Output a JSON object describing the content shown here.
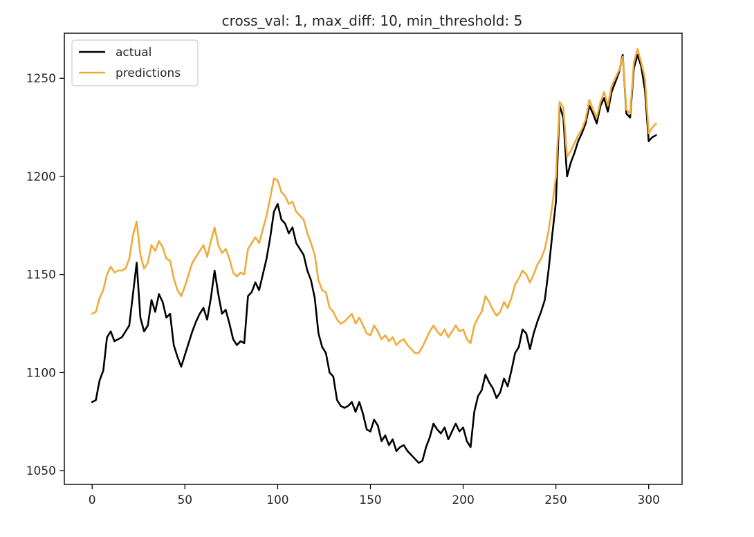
{
  "chart_data": {
    "type": "line",
    "title": "cross_val: 1, max_diff: 10, min_threshold: 5",
    "xlabel": "",
    "ylabel": "",
    "xlim": [
      -15,
      318
    ],
    "ylim": [
      1043,
      1273
    ],
    "xticks": [
      0,
      50,
      100,
      150,
      200,
      250,
      300
    ],
    "yticks": [
      1050,
      1100,
      1150,
      1200,
      1250
    ],
    "grid": false,
    "legend_position": "upper left",
    "series": [
      {
        "name": "actual",
        "color": "#000000",
        "points": [
          [
            0,
            1085
          ],
          [
            2,
            1086
          ],
          [
            4,
            1096
          ],
          [
            6,
            1101
          ],
          [
            8,
            1118
          ],
          [
            10,
            1121
          ],
          [
            12,
            1116
          ],
          [
            14,
            1117
          ],
          [
            16,
            1118
          ],
          [
            18,
            1121
          ],
          [
            20,
            1124
          ],
          [
            22,
            1140
          ],
          [
            24,
            1156
          ],
          [
            26,
            1128
          ],
          [
            28,
            1121
          ],
          [
            30,
            1124
          ],
          [
            32,
            1137
          ],
          [
            34,
            1131
          ],
          [
            36,
            1140
          ],
          [
            38,
            1136
          ],
          [
            40,
            1128
          ],
          [
            42,
            1130
          ],
          [
            44,
            1114
          ],
          [
            46,
            1108
          ],
          [
            48,
            1103
          ],
          [
            50,
            1109
          ],
          [
            52,
            1115
          ],
          [
            54,
            1121
          ],
          [
            56,
            1126
          ],
          [
            58,
            1130
          ],
          [
            60,
            1133
          ],
          [
            62,
            1127
          ],
          [
            64,
            1138
          ],
          [
            66,
            1152
          ],
          [
            68,
            1140
          ],
          [
            70,
            1130
          ],
          [
            72,
            1132
          ],
          [
            74,
            1125
          ],
          [
            76,
            1117
          ],
          [
            78,
            1114
          ],
          [
            80,
            1116
          ],
          [
            82,
            1115
          ],
          [
            84,
            1139
          ],
          [
            86,
            1141
          ],
          [
            88,
            1146
          ],
          [
            90,
            1142
          ],
          [
            92,
            1150
          ],
          [
            94,
            1158
          ],
          [
            96,
            1169
          ],
          [
            98,
            1182
          ],
          [
            100,
            1186
          ],
          [
            102,
            1178
          ],
          [
            104,
            1176
          ],
          [
            106,
            1171
          ],
          [
            108,
            1174
          ],
          [
            110,
            1166
          ],
          [
            112,
            1163
          ],
          [
            114,
            1160
          ],
          [
            116,
            1152
          ],
          [
            118,
            1147
          ],
          [
            120,
            1138
          ],
          [
            122,
            1120
          ],
          [
            124,
            1113
          ],
          [
            126,
            1110
          ],
          [
            128,
            1100
          ],
          [
            130,
            1098
          ],
          [
            132,
            1086
          ],
          [
            134,
            1083
          ],
          [
            136,
            1082
          ],
          [
            138,
            1083
          ],
          [
            140,
            1085
          ],
          [
            142,
            1080
          ],
          [
            144,
            1085
          ],
          [
            146,
            1079
          ],
          [
            148,
            1071
          ],
          [
            150,
            1070
          ],
          [
            152,
            1076
          ],
          [
            154,
            1073
          ],
          [
            156,
            1065
          ],
          [
            158,
            1068
          ],
          [
            160,
            1063
          ],
          [
            162,
            1066
          ],
          [
            164,
            1060
          ],
          [
            166,
            1062
          ],
          [
            168,
            1063
          ],
          [
            170,
            1060
          ],
          [
            172,
            1058
          ],
          [
            174,
            1056
          ],
          [
            176,
            1054
          ],
          [
            178,
            1055
          ],
          [
            180,
            1062
          ],
          [
            182,
            1067
          ],
          [
            184,
            1074
          ],
          [
            186,
            1071
          ],
          [
            188,
            1069
          ],
          [
            190,
            1072
          ],
          [
            192,
            1066
          ],
          [
            194,
            1070
          ],
          [
            196,
            1074
          ],
          [
            198,
            1070
          ],
          [
            200,
            1072
          ],
          [
            202,
            1065
          ],
          [
            204,
            1062
          ],
          [
            206,
            1080
          ],
          [
            208,
            1088
          ],
          [
            210,
            1091
          ],
          [
            212,
            1099
          ],
          [
            214,
            1095
          ],
          [
            216,
            1092
          ],
          [
            218,
            1087
          ],
          [
            220,
            1090
          ],
          [
            222,
            1097
          ],
          [
            224,
            1093
          ],
          [
            226,
            1101
          ],
          [
            228,
            1110
          ],
          [
            230,
            1113
          ],
          [
            232,
            1122
          ],
          [
            234,
            1120
          ],
          [
            236,
            1112
          ],
          [
            238,
            1120
          ],
          [
            240,
            1126
          ],
          [
            242,
            1131
          ],
          [
            244,
            1137
          ],
          [
            246,
            1152
          ],
          [
            248,
            1170
          ],
          [
            250,
            1187
          ],
          [
            252,
            1236
          ],
          [
            254,
            1230
          ],
          [
            256,
            1200
          ],
          [
            258,
            1207
          ],
          [
            260,
            1212
          ],
          [
            262,
            1218
          ],
          [
            264,
            1222
          ],
          [
            266,
            1227
          ],
          [
            268,
            1236
          ],
          [
            270,
            1232
          ],
          [
            272,
            1227
          ],
          [
            274,
            1236
          ],
          [
            276,
            1240
          ],
          [
            278,
            1233
          ],
          [
            280,
            1243
          ],
          [
            282,
            1248
          ],
          [
            284,
            1253
          ],
          [
            286,
            1262
          ],
          [
            288,
            1232
          ],
          [
            290,
            1230
          ],
          [
            292,
            1255
          ],
          [
            294,
            1262
          ],
          [
            296,
            1256
          ],
          [
            298,
            1244
          ],
          [
            300,
            1218
          ],
          [
            302,
            1220
          ],
          [
            304,
            1221
          ]
        ]
      },
      {
        "name": "predictions",
        "color": "#f0aa3a",
        "points": [
          [
            0,
            1130
          ],
          [
            2,
            1131
          ],
          [
            4,
            1138
          ],
          [
            6,
            1142
          ],
          [
            8,
            1150
          ],
          [
            10,
            1154
          ],
          [
            12,
            1151
          ],
          [
            14,
            1152
          ],
          [
            16,
            1152
          ],
          [
            18,
            1153
          ],
          [
            20,
            1158
          ],
          [
            22,
            1170
          ],
          [
            24,
            1177
          ],
          [
            26,
            1160
          ],
          [
            28,
            1153
          ],
          [
            30,
            1156
          ],
          [
            32,
            1165
          ],
          [
            34,
            1162
          ],
          [
            36,
            1167
          ],
          [
            38,
            1164
          ],
          [
            40,
            1158
          ],
          [
            42,
            1157
          ],
          [
            44,
            1148
          ],
          [
            46,
            1142
          ],
          [
            48,
            1139
          ],
          [
            50,
            1144
          ],
          [
            52,
            1150
          ],
          [
            54,
            1156
          ],
          [
            56,
            1159
          ],
          [
            58,
            1162
          ],
          [
            60,
            1165
          ],
          [
            62,
            1159
          ],
          [
            64,
            1167
          ],
          [
            66,
            1174
          ],
          [
            68,
            1165
          ],
          [
            70,
            1161
          ],
          [
            72,
            1163
          ],
          [
            74,
            1158
          ],
          [
            76,
            1151
          ],
          [
            78,
            1149
          ],
          [
            80,
            1151
          ],
          [
            82,
            1150
          ],
          [
            84,
            1163
          ],
          [
            86,
            1166
          ],
          [
            88,
            1169
          ],
          [
            90,
            1166
          ],
          [
            92,
            1173
          ],
          [
            94,
            1180
          ],
          [
            96,
            1189
          ],
          [
            98,
            1199
          ],
          [
            100,
            1198
          ],
          [
            102,
            1192
          ],
          [
            104,
            1190
          ],
          [
            106,
            1186
          ],
          [
            108,
            1187
          ],
          [
            110,
            1182
          ],
          [
            112,
            1180
          ],
          [
            114,
            1178
          ],
          [
            116,
            1171
          ],
          [
            118,
            1166
          ],
          [
            120,
            1160
          ],
          [
            122,
            1147
          ],
          [
            124,
            1142
          ],
          [
            126,
            1141
          ],
          [
            128,
            1133
          ],
          [
            130,
            1131
          ],
          [
            132,
            1127
          ],
          [
            134,
            1125
          ],
          [
            136,
            1126
          ],
          [
            138,
            1128
          ],
          [
            140,
            1130
          ],
          [
            142,
            1125
          ],
          [
            144,
            1128
          ],
          [
            146,
            1124
          ],
          [
            148,
            1120
          ],
          [
            150,
            1119
          ],
          [
            152,
            1124
          ],
          [
            154,
            1121
          ],
          [
            156,
            1117
          ],
          [
            158,
            1119
          ],
          [
            160,
            1116
          ],
          [
            162,
            1118
          ],
          [
            164,
            1114
          ],
          [
            166,
            1116
          ],
          [
            168,
            1117
          ],
          [
            170,
            1114
          ],
          [
            172,
            1112
          ],
          [
            174,
            1110
          ],
          [
            176,
            1110
          ],
          [
            178,
            1113
          ],
          [
            180,
            1117
          ],
          [
            182,
            1121
          ],
          [
            184,
            1124
          ],
          [
            186,
            1121
          ],
          [
            188,
            1119
          ],
          [
            190,
            1122
          ],
          [
            192,
            1118
          ],
          [
            194,
            1121
          ],
          [
            196,
            1124
          ],
          [
            198,
            1121
          ],
          [
            200,
            1122
          ],
          [
            202,
            1117
          ],
          [
            204,
            1115
          ],
          [
            206,
            1124
          ],
          [
            208,
            1128
          ],
          [
            210,
            1131
          ],
          [
            212,
            1139
          ],
          [
            214,
            1136
          ],
          [
            216,
            1132
          ],
          [
            218,
            1129
          ],
          [
            220,
            1131
          ],
          [
            222,
            1136
          ],
          [
            224,
            1133
          ],
          [
            226,
            1138
          ],
          [
            228,
            1145
          ],
          [
            230,
            1148
          ],
          [
            232,
            1152
          ],
          [
            234,
            1150
          ],
          [
            236,
            1146
          ],
          [
            238,
            1150
          ],
          [
            240,
            1155
          ],
          [
            242,
            1158
          ],
          [
            244,
            1163
          ],
          [
            246,
            1172
          ],
          [
            248,
            1185
          ],
          [
            250,
            1200
          ],
          [
            252,
            1238
          ],
          [
            254,
            1235
          ],
          [
            256,
            1210
          ],
          [
            258,
            1213
          ],
          [
            260,
            1217
          ],
          [
            262,
            1221
          ],
          [
            264,
            1224
          ],
          [
            266,
            1229
          ],
          [
            268,
            1239
          ],
          [
            270,
            1234
          ],
          [
            272,
            1230
          ],
          [
            274,
            1238
          ],
          [
            276,
            1243
          ],
          [
            278,
            1236
          ],
          [
            280,
            1246
          ],
          [
            282,
            1250
          ],
          [
            284,
            1254
          ],
          [
            286,
            1261
          ],
          [
            288,
            1234
          ],
          [
            290,
            1232
          ],
          [
            292,
            1258
          ],
          [
            294,
            1265
          ],
          [
            296,
            1258
          ],
          [
            298,
            1250
          ],
          [
            300,
            1222
          ],
          [
            302,
            1225
          ],
          [
            304,
            1227
          ]
        ]
      }
    ]
  }
}
